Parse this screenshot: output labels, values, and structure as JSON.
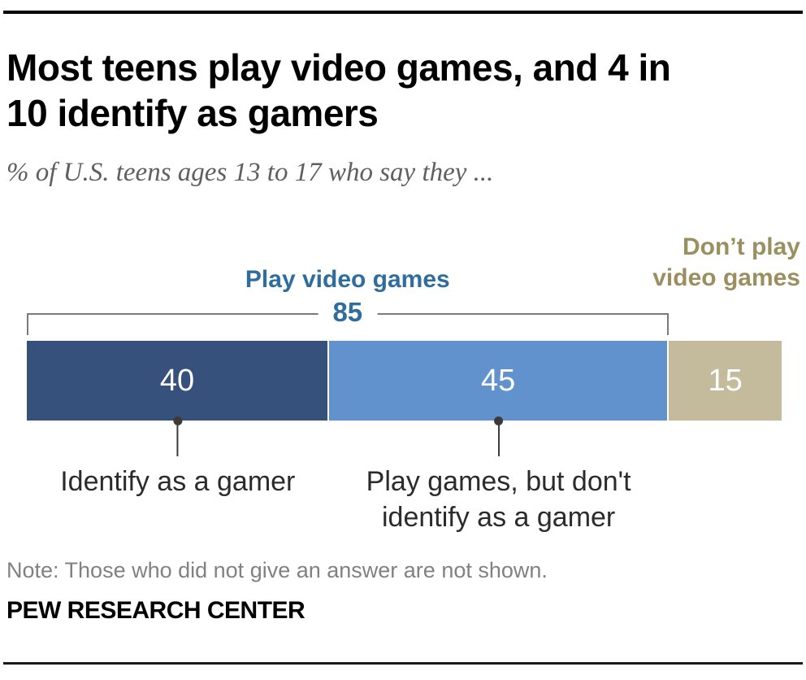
{
  "page": {
    "title": "Most teens play video games, and 4 in 10 identify as gamers",
    "title_lines": [
      "Most teens play video games, and 4 in",
      "10 identify as gamers"
    ],
    "subtitle": "% of U.S. teens ages 13 to 17 who say they ...",
    "note": "Note: Those who did not give an answer are not shown.",
    "source": "PEW RESEARCH CENTER"
  },
  "chart_data": {
    "type": "bar",
    "subtype": "horizontal-stacked-single-bar",
    "title": "Most teens play video games, and 4 in 10 identify as gamers",
    "subtitle": "% of U.S. teens ages 13 to 17 who say they ...",
    "unit": "percent",
    "xlim": [
      0,
      100
    ],
    "grid": false,
    "segments": [
      {
        "label": "Identify as a gamer",
        "value": 40,
        "color": "#35517C"
      },
      {
        "label": "Play games, but don't identify as a gamer",
        "value": 45,
        "color": "#6292CE"
      },
      {
        "label": "Don't play video games",
        "value": 15,
        "color": "#C4BB9C"
      }
    ],
    "value_label_color": "#ffffff",
    "bracket": {
      "label": "Play video games",
      "value": 85,
      "span_percent": 85,
      "color": "#2E6D9E"
    },
    "right_group_label": {
      "lines": [
        "Don’t play",
        "video games"
      ],
      "color": "#9C8F5F"
    },
    "callouts": [
      {
        "lines": [
          "Identify as a gamer"
        ],
        "anchor_percent": 20
      },
      {
        "lines": [
          "Play games, but don't",
          "identify as a gamer"
        ],
        "anchor_percent": 62.5
      }
    ]
  },
  "colors": {
    "dark_blue": "#35517C",
    "light_blue": "#6292CE",
    "tan": "#C4BB9C",
    "blue_label": "#2E6D9E",
    "tan_label": "#9C8F5F",
    "note_gray": "#818181",
    "subtitle_gray": "#5f5f5f",
    "rule_black": "#000000"
  }
}
